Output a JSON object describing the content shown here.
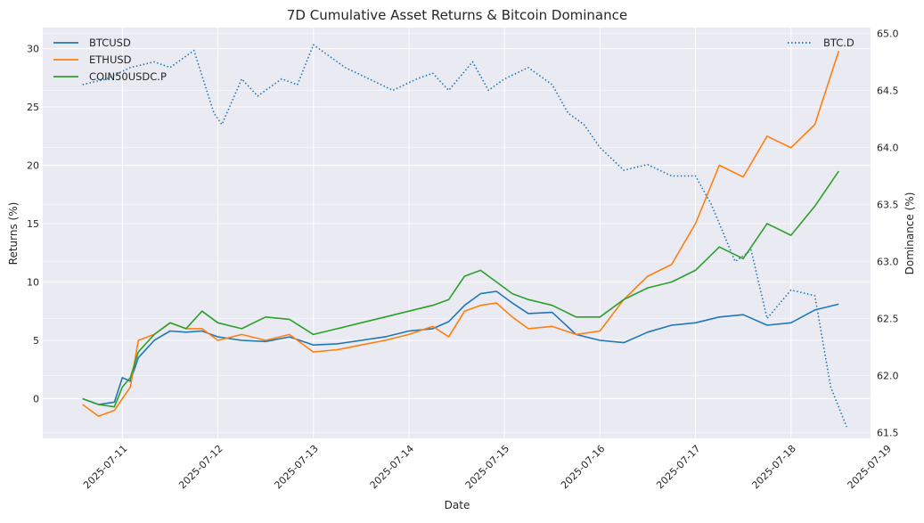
{
  "chart_data": {
    "type": "line",
    "title": "7D Cumulative Asset Returns & Bitcoin Dominance",
    "xlabel": "Date",
    "ylabel": "Returns (%)",
    "y2label": "Dominance (%)",
    "x_ticks": [
      "2025-07-11",
      "2025-07-12",
      "2025-07-13",
      "2025-07-14",
      "2025-07-15",
      "2025-07-16",
      "2025-07-17",
      "2025-07-18",
      "2025-07-19"
    ],
    "y_ticks": [
      "0",
      "5",
      "10",
      "15",
      "20",
      "25",
      "30"
    ],
    "y2_ticks": [
      "61.5",
      "62.0",
      "62.5",
      "63.0",
      "63.5",
      "64.0",
      "64.5",
      "65.0"
    ],
    "ylim": [
      -3.4,
      31.8
    ],
    "y2lim": [
      61.45,
      65.05
    ],
    "xlim": [
      "2025-07-10T04:00",
      "2025-07-18T20:00"
    ],
    "grid": true,
    "legend_left_position": "top-left",
    "legend_right_position": "top-right",
    "colors": {
      "background": "#eaeaf2",
      "grid": "#ffffff",
      "btc": "#1f77b4",
      "eth": "#ff7f0e",
      "coin50": "#2ca02c",
      "dominance": "#1f77b4"
    },
    "series": [
      {
        "name": "BTCUSD",
        "axis": "left",
        "style": "solid",
        "x": [
          "2025-07-10T14:00",
          "2025-07-10T18:00",
          "2025-07-10T22:00",
          "2025-07-11T00:00",
          "2025-07-11T02:00",
          "2025-07-11T04:00",
          "2025-07-11T08:00",
          "2025-07-11T12:00",
          "2025-07-11T16:00",
          "2025-07-11T20:00",
          "2025-07-12T00:00",
          "2025-07-12T06:00",
          "2025-07-12T12:00",
          "2025-07-12T18:00",
          "2025-07-13T00:00",
          "2025-07-13T06:00",
          "2025-07-13T12:00",
          "2025-07-13T18:00",
          "2025-07-14T00:00",
          "2025-07-14T06:00",
          "2025-07-14T10:00",
          "2025-07-14T14:00",
          "2025-07-14T18:00",
          "2025-07-14T22:00",
          "2025-07-15T02:00",
          "2025-07-15T06:00",
          "2025-07-15T12:00",
          "2025-07-15T18:00",
          "2025-07-16T00:00",
          "2025-07-16T06:00",
          "2025-07-16T12:00",
          "2025-07-16T18:00",
          "2025-07-17T00:00",
          "2025-07-17T06:00",
          "2025-07-17T12:00",
          "2025-07-17T18:00",
          "2025-07-18T00:00",
          "2025-07-18T06:00",
          "2025-07-18T12:00"
        ],
        "y": [
          0.0,
          -0.5,
          -0.3,
          1.8,
          1.5,
          3.5,
          5.0,
          5.8,
          5.7,
          5.8,
          5.3,
          5.0,
          4.9,
          5.3,
          4.6,
          4.7,
          5.0,
          5.3,
          5.8,
          6.0,
          6.6,
          8.0,
          9.0,
          9.2,
          8.2,
          7.3,
          7.4,
          5.5,
          5.0,
          4.8,
          5.7,
          6.3,
          6.5,
          7.0,
          7.2,
          6.3,
          6.5,
          7.6,
          8.1
        ]
      },
      {
        "name": "ETHUSD",
        "axis": "left",
        "style": "solid",
        "x": [
          "2025-07-10T14:00",
          "2025-07-10T18:00",
          "2025-07-10T22:00",
          "2025-07-11T00:00",
          "2025-07-11T02:00",
          "2025-07-11T04:00",
          "2025-07-11T08:00",
          "2025-07-11T12:00",
          "2025-07-11T16:00",
          "2025-07-11T20:00",
          "2025-07-12T00:00",
          "2025-07-12T06:00",
          "2025-07-12T12:00",
          "2025-07-12T18:00",
          "2025-07-13T00:00",
          "2025-07-13T06:00",
          "2025-07-13T12:00",
          "2025-07-13T18:00",
          "2025-07-14T00:00",
          "2025-07-14T06:00",
          "2025-07-14T10:00",
          "2025-07-14T14:00",
          "2025-07-14T18:00",
          "2025-07-14T22:00",
          "2025-07-15T02:00",
          "2025-07-15T06:00",
          "2025-07-15T12:00",
          "2025-07-15T18:00",
          "2025-07-16T00:00",
          "2025-07-16T06:00",
          "2025-07-16T12:00",
          "2025-07-16T18:00",
          "2025-07-17T00:00",
          "2025-07-17T06:00",
          "2025-07-17T12:00",
          "2025-07-17T18:00",
          "2025-07-18T00:00",
          "2025-07-18T06:00",
          "2025-07-18T12:00"
        ],
        "y": [
          -0.5,
          -1.5,
          -1.0,
          0.0,
          1.0,
          5.0,
          5.5,
          6.5,
          6.0,
          6.0,
          5.0,
          5.5,
          5.0,
          5.5,
          4.0,
          4.2,
          4.6,
          5.0,
          5.5,
          6.2,
          5.3,
          7.5,
          8.0,
          8.2,
          7.0,
          6.0,
          6.2,
          5.5,
          5.8,
          8.5,
          10.5,
          11.5,
          15.0,
          20.0,
          19.0,
          22.5,
          21.5,
          23.5,
          29.8
        ]
      },
      {
        "name": "COIN50USDC.P",
        "axis": "left",
        "style": "solid",
        "x": [
          "2025-07-10T14:00",
          "2025-07-10T18:00",
          "2025-07-10T22:00",
          "2025-07-11T00:00",
          "2025-07-11T02:00",
          "2025-07-11T04:00",
          "2025-07-11T08:00",
          "2025-07-11T12:00",
          "2025-07-11T16:00",
          "2025-07-11T20:00",
          "2025-07-12T00:00",
          "2025-07-12T06:00",
          "2025-07-12T12:00",
          "2025-07-12T18:00",
          "2025-07-13T00:00",
          "2025-07-13T06:00",
          "2025-07-13T12:00",
          "2025-07-13T18:00",
          "2025-07-14T00:00",
          "2025-07-14T06:00",
          "2025-07-14T10:00",
          "2025-07-14T14:00",
          "2025-07-14T18:00",
          "2025-07-14T22:00",
          "2025-07-15T02:00",
          "2025-07-15T06:00",
          "2025-07-15T12:00",
          "2025-07-15T18:00",
          "2025-07-16T00:00",
          "2025-07-16T06:00",
          "2025-07-16T12:00",
          "2025-07-16T18:00",
          "2025-07-17T00:00",
          "2025-07-17T06:00",
          "2025-07-17T12:00",
          "2025-07-17T18:00",
          "2025-07-18T00:00",
          "2025-07-18T06:00",
          "2025-07-18T12:00"
        ],
        "y": [
          0.0,
          -0.5,
          -0.7,
          1.0,
          1.8,
          4.0,
          5.5,
          6.5,
          6.0,
          7.5,
          6.5,
          6.0,
          7.0,
          6.8,
          5.5,
          6.0,
          6.5,
          7.0,
          7.5,
          8.0,
          8.5,
          10.5,
          11.0,
          10.0,
          9.0,
          8.5,
          8.0,
          7.0,
          7.0,
          8.5,
          9.5,
          10.0,
          11.0,
          13.0,
          12.0,
          15.0,
          14.0,
          16.5,
          19.5
        ]
      },
      {
        "name": "BTC.D",
        "axis": "right",
        "style": "dotted",
        "x": [
          "2025-07-10T14:00",
          "2025-07-10T20:00",
          "2025-07-11T02:00",
          "2025-07-11T08:00",
          "2025-07-11T12:00",
          "2025-07-11T18:00",
          "2025-07-11T23:00",
          "2025-07-12T01:00",
          "2025-07-12T06:00",
          "2025-07-12T10:00",
          "2025-07-12T16:00",
          "2025-07-12T20:00",
          "2025-07-13T00:00",
          "2025-07-13T04:00",
          "2025-07-13T08:00",
          "2025-07-13T14:00",
          "2025-07-13T20:00",
          "2025-07-14T02:00",
          "2025-07-14T06:00",
          "2025-07-14T10:00",
          "2025-07-14T16:00",
          "2025-07-14T20:00",
          "2025-07-15T00:00",
          "2025-07-15T06:00",
          "2025-07-15T12:00",
          "2025-07-15T16:00",
          "2025-07-15T20:00",
          "2025-07-16T00:00",
          "2025-07-16T06:00",
          "2025-07-16T12:00",
          "2025-07-16T18:00",
          "2025-07-17T00:00",
          "2025-07-17T04:00",
          "2025-07-17T10:00",
          "2025-07-17T14:00",
          "2025-07-17T18:00",
          "2025-07-18T00:00",
          "2025-07-18T06:00",
          "2025-07-18T10:00",
          "2025-07-18T14:00"
        ],
        "y": [
          64.55,
          64.6,
          64.7,
          64.75,
          64.7,
          64.85,
          64.3,
          64.2,
          64.6,
          64.45,
          64.6,
          64.55,
          64.9,
          64.8,
          64.7,
          64.6,
          64.5,
          64.6,
          64.65,
          64.5,
          64.75,
          64.5,
          64.6,
          64.7,
          64.55,
          64.3,
          64.2,
          64.0,
          63.8,
          63.85,
          63.75,
          63.75,
          63.5,
          63.0,
          63.1,
          62.5,
          62.75,
          62.7,
          61.9,
          61.55
        ]
      }
    ]
  }
}
